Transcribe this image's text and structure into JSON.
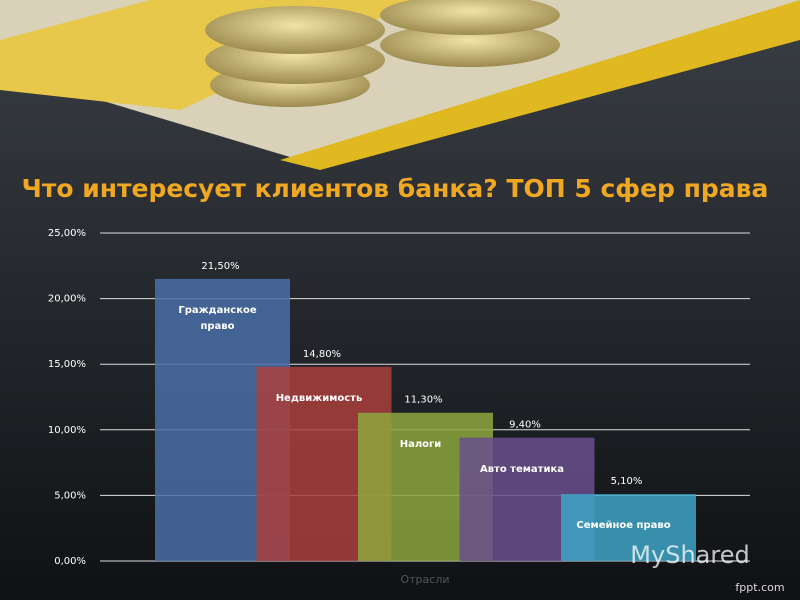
{
  "chart_data": {
    "type": "bar",
    "title": "Что интересует клиентов банка? ТОП 5 сфер права",
    "x_label": "Отрасли",
    "categories": [
      "Гражданское право",
      "Недвижимость",
      "Налоги",
      "Авто тематика",
      "Семейное право"
    ],
    "values": [
      21.5,
      14.8,
      11.3,
      9.4,
      5.1
    ],
    "value_labels": [
      "21,50%",
      "14,80%",
      "11,30%",
      "9,40%",
      "5,10%"
    ],
    "colors": [
      "#4a6ea8",
      "#a9403d",
      "#8ca63e",
      "#6a4f8c",
      "#3ea5c7"
    ],
    "ylim": [
      0,
      25
    ],
    "yticks": [
      {
        "value": 0,
        "label": "0,00%"
      },
      {
        "value": 5,
        "label": "5,00%"
      },
      {
        "value": 10,
        "label": "10,00%"
      },
      {
        "value": 15,
        "label": "15,00%"
      },
      {
        "value": 20,
        "label": "20,00%"
      },
      {
        "value": 25,
        "label": "25,00%"
      }
    ],
    "grid": true
  },
  "watermark": "MyShared",
  "footer": "fppt.com"
}
